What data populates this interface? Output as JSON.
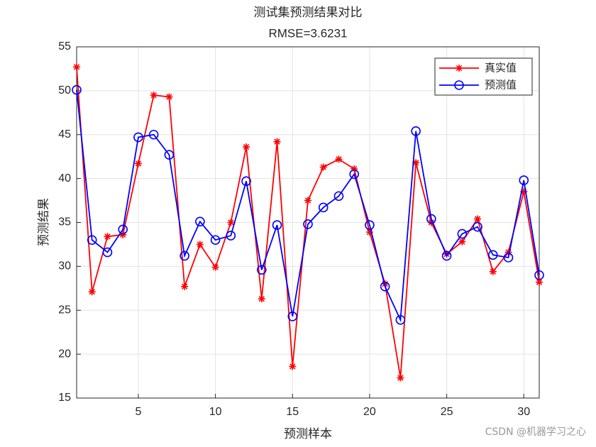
{
  "chart_data": {
    "type": "line",
    "title": "测试集预测结果对比",
    "subtitle": "RMSE=3.6231",
    "x_label": "预测样本",
    "y_label": "预测结果",
    "x": [
      1,
      2,
      3,
      4,
      5,
      6,
      7,
      8,
      9,
      10,
      11,
      12,
      13,
      14,
      15,
      16,
      17,
      18,
      19,
      20,
      21,
      22,
      23,
      24,
      25,
      26,
      27,
      28,
      29,
      30,
      31
    ],
    "series": [
      {
        "name": "真实值",
        "color": "#ff0000",
        "marker": "asterisk",
        "values": [
          52.7,
          27.1,
          33.4,
          33.6,
          41.7,
          49.5,
          49.3,
          27.7,
          32.5,
          29.9,
          35.0,
          43.6,
          26.3,
          44.2,
          18.6,
          37.5,
          41.3,
          42.2,
          41.1,
          33.9,
          28.0,
          17.3,
          41.8,
          35.0,
          31.4,
          32.8,
          35.4,
          29.4,
          31.6,
          38.5,
          28.2
        ]
      },
      {
        "name": "预测值",
        "color": "#0000ff",
        "marker": "circle",
        "values": [
          50.1,
          33.0,
          31.6,
          34.2,
          44.7,
          45.0,
          42.7,
          31.2,
          35.1,
          33.0,
          33.5,
          39.7,
          29.6,
          34.7,
          24.3,
          34.8,
          36.7,
          38.0,
          40.5,
          34.7,
          27.7,
          23.9,
          45.4,
          35.4,
          31.2,
          33.7,
          34.5,
          31.3,
          31.0,
          39.8,
          29.0
        ]
      }
    ],
    "xlim": [
      1,
      31
    ],
    "xticks": [
      5,
      10,
      15,
      20,
      25,
      30
    ],
    "ylim": [
      15,
      55
    ],
    "yticks": [
      15,
      20,
      25,
      30,
      35,
      40,
      45,
      50,
      55
    ],
    "grid": true,
    "legend": "northeast",
    "watermark": "CSDN @机器学习之心"
  }
}
